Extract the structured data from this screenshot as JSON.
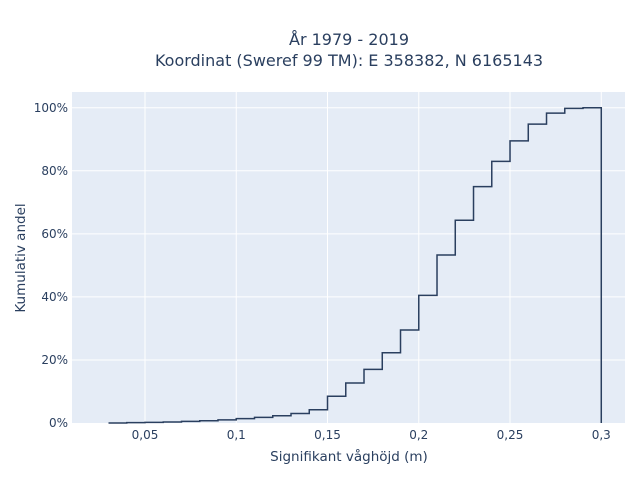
{
  "chart_data": {
    "type": "line",
    "subtype": "cumulative-step",
    "title_line1": "År 1979 - 2019",
    "title_line2": "Koordinat (Sweref 99 TM): E 358382, N 6165143",
    "xlabel": "Signifikant våghöjd (m)",
    "ylabel": "Kumulativ andel",
    "xlim": [
      0.01,
      0.313
    ],
    "ylim": [
      0,
      1.05
    ],
    "x_ticks": [
      0.05,
      0.1,
      0.15,
      0.2,
      0.25,
      0.3
    ],
    "x_tick_labels": [
      "0,05",
      "0,1",
      "0,15",
      "0,2",
      "0,25",
      "0,3"
    ],
    "y_ticks": [
      0,
      0.2,
      0.4,
      0.6,
      0.8,
      1.0
    ],
    "y_tick_labels": [
      "0%",
      "20%",
      "40%",
      "60%",
      "80%",
      "100%"
    ],
    "grid": true,
    "bin_edges": [
      0.03,
      0.04,
      0.05,
      0.06,
      0.07,
      0.08,
      0.09,
      0.1,
      0.11,
      0.12,
      0.13,
      0.14,
      0.15,
      0.16,
      0.17,
      0.18,
      0.19,
      0.2,
      0.21,
      0.22,
      0.23,
      0.24,
      0.25,
      0.26,
      0.27,
      0.28,
      0.29,
      0.3
    ],
    "values": [
      0.0,
      0.001,
      0.002,
      0.003,
      0.005,
      0.007,
      0.01,
      0.014,
      0.018,
      0.023,
      0.03,
      0.042,
      0.085,
      0.127,
      0.17,
      0.223,
      0.295,
      0.405,
      0.533,
      0.643,
      0.75,
      0.83,
      0.895,
      0.948,
      0.983,
      0.998,
      1.0
    ],
    "colors": {
      "plot_bg": "#e5ecf6",
      "grid": "#ffffff",
      "line": "#2a3f5f",
      "text": "#2a3f5f"
    }
  }
}
